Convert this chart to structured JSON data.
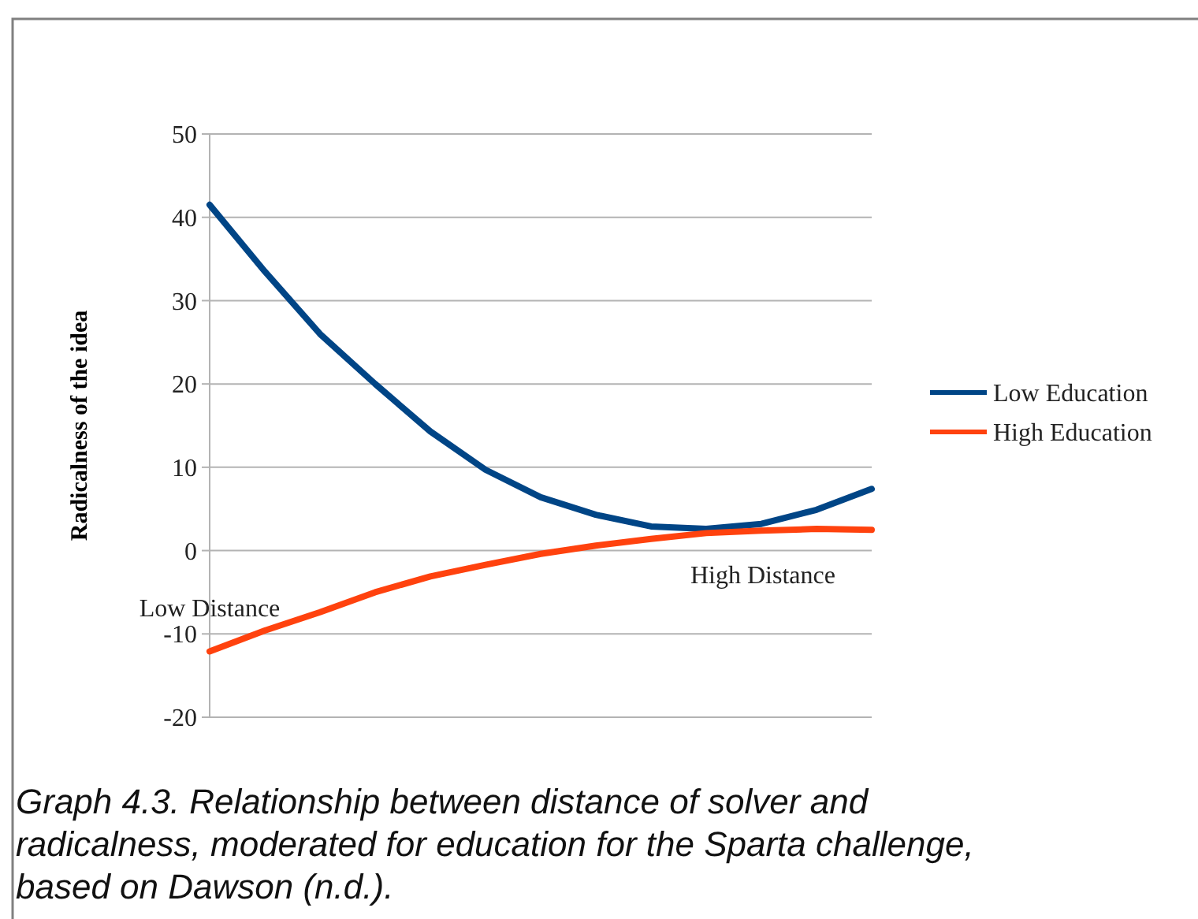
{
  "chart_data": {
    "type": "line",
    "title": "Graph 4.3. Relationship between distance of solver and radicalness, moderated for education for the Sparta challenge, based on Dawson (n.d.).",
    "ylabel": "Radicalness of the idea",
    "categories": [
      null,
      null,
      null,
      null,
      null,
      null,
      null,
      null,
      null,
      null,
      null,
      null,
      null
    ],
    "series": [
      {
        "name": "Low Education",
        "color": "#004586",
        "values": [
          41.5,
          33.5,
          26,
          20,
          14.3,
          9.7,
          6.4,
          4.3,
          2.9,
          2.6,
          3.2,
          4.9,
          7.4
        ]
      },
      {
        "name": "High Education",
        "color": "#ff420e",
        "values": [
          -12.1,
          -9.6,
          -7.4,
          -5,
          -3.1,
          -1.7,
          -0.4,
          0.6,
          1.4,
          2.1,
          2.4,
          2.6,
          2.5
        ]
      }
    ],
    "annotations": [
      "Low Distance",
      "High Distance"
    ],
    "ylim": [
      -20,
      50
    ],
    "yticks": [
      -20,
      -10,
      0,
      10,
      20,
      30,
      40,
      50
    ],
    "grid": "y",
    "legend": "right",
    "tick_labels": "y",
    "line_style": "solid"
  }
}
